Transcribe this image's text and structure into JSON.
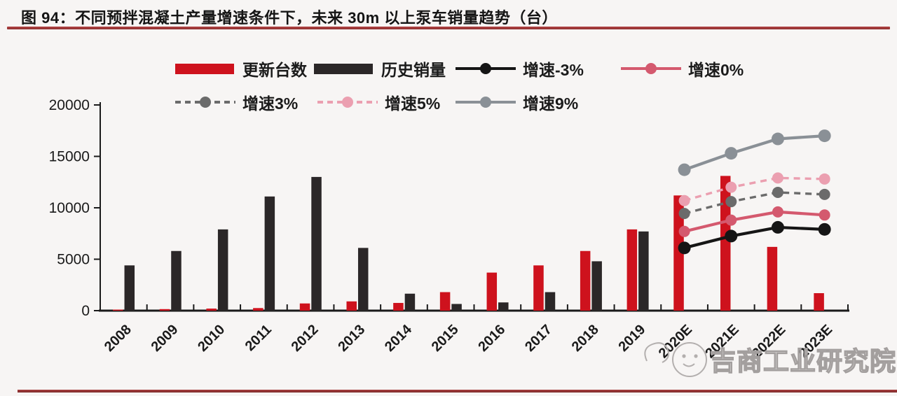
{
  "figure": {
    "title": "图 94：不同预拌混凝土产量增速条件下，未来 30m 以上泵车销量趋势（台）",
    "watermark": "吉商工业研究院"
  },
  "legend": {
    "row1": [
      {
        "label": "更新台数",
        "type": "bar",
        "color": "#ce121d",
        "dashed": false
      },
      {
        "label": "历史销量",
        "type": "bar",
        "color": "#2b2728",
        "dashed": false
      },
      {
        "label": "增速-3%",
        "type": "line",
        "color": "#151515",
        "dashed": false
      },
      {
        "label": "增速0%",
        "type": "line",
        "color": "#d4596e",
        "dashed": false
      }
    ],
    "row2": [
      {
        "label": "增速3%",
        "type": "line",
        "color": "#6b6b6b",
        "dashed": true
      },
      {
        "label": "增速5%",
        "type": "line",
        "color": "#eb9fb0",
        "dashed": true
      },
      {
        "label": "增速9%",
        "type": "line",
        "color": "#8a9096",
        "dashed": false
      }
    ]
  },
  "chart_data": {
    "type": "bar+line",
    "title": "图 94：不同预拌混凝土产量增速条件下，未来 30m 以上泵车销量趋势（台）",
    "xlabel": "",
    "ylabel": "",
    "ylim": [
      0,
      20000
    ],
    "yticks": [
      0,
      5000,
      10000,
      15000,
      20000
    ],
    "grid": false,
    "legend_position": "top",
    "categories": [
      "2008",
      "2009",
      "2010",
      "2011",
      "2012",
      "2013",
      "2014",
      "2015",
      "2016",
      "2017",
      "2018",
      "2019",
      "2020E",
      "2021E",
      "2022E",
      "2023E"
    ],
    "series": [
      {
        "name": "更新台数",
        "type": "bar",
        "color": "#ce121d",
        "dashed": false,
        "values": [
          100,
          150,
          200,
          250,
          700,
          900,
          750,
          1800,
          3700,
          4400,
          5800,
          7900,
          11200,
          13100,
          6200,
          1700
        ]
      },
      {
        "name": "历史销量",
        "type": "bar",
        "color": "#2b2728",
        "dashed": false,
        "values": [
          4400,
          5800,
          7900,
          11100,
          13000,
          6100,
          1650,
          650,
          800,
          1800,
          4800,
          7700,
          null,
          null,
          null,
          null
        ]
      },
      {
        "name": "增速-3%",
        "type": "line",
        "color": "#151515",
        "dashed": false,
        "marker_r": 9,
        "values": [
          null,
          null,
          null,
          null,
          null,
          null,
          null,
          null,
          null,
          null,
          null,
          null,
          6100,
          7250,
          8100,
          7900
        ]
      },
      {
        "name": "增速0%",
        "type": "line",
        "color": "#d4596e",
        "dashed": false,
        "marker_r": 8,
        "values": [
          null,
          null,
          null,
          null,
          null,
          null,
          null,
          null,
          null,
          null,
          null,
          null,
          7700,
          8800,
          9600,
          9300
        ]
      },
      {
        "name": "增速3%",
        "type": "line",
        "color": "#6b6b6b",
        "dashed": true,
        "marker_r": 8,
        "values": [
          null,
          null,
          null,
          null,
          null,
          null,
          null,
          null,
          null,
          null,
          null,
          null,
          9450,
          10600,
          11500,
          11300
        ]
      },
      {
        "name": "增速5%",
        "type": "line",
        "color": "#eb9fb0",
        "dashed": true,
        "marker_r": 8,
        "values": [
          null,
          null,
          null,
          null,
          null,
          null,
          null,
          null,
          null,
          null,
          null,
          null,
          10700,
          12000,
          12900,
          12800
        ]
      },
      {
        "name": "增速9%",
        "type": "line",
        "color": "#8a9096",
        "dashed": false,
        "marker_r": 9,
        "values": [
          null,
          null,
          null,
          null,
          null,
          null,
          null,
          null,
          null,
          null,
          null,
          null,
          13700,
          15300,
          16700,
          17000
        ]
      }
    ]
  }
}
